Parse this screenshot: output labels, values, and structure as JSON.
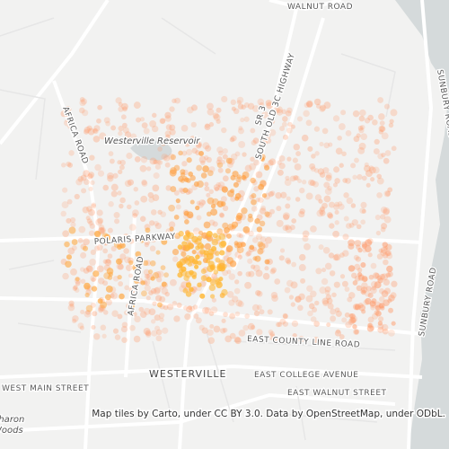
{
  "map": {
    "labels": {
      "walnut_road": "WALNUT ROAD",
      "africa_road_north": "AFRICA ROAD",
      "africa_road_south": "AFRICA ROAD",
      "reservoir": "Westerville Reservoir",
      "sr3": "SR 3",
      "old_3c": "SOUTH OLD 3C HIGHWAY",
      "polaris": "POLARIS PARKWAY",
      "county_line": "EAST COUNTY LINE ROAD",
      "westerville": "WESTERVILLE",
      "college": "EAST COLLEGE AVENUE",
      "west_main": "WEST MAIN STREET",
      "east_walnut": "EAST WALNUT STREET",
      "sunbury_north": "SUNBURY ROAD",
      "sunbury_south": "SUNBURY ROAD",
      "sharon": "Sharon",
      "woods": "Woods"
    },
    "attribution": "Map tiles by Carto, under CC BY 3.0. Data by OpenStreetMap, under ODbL."
  }
}
